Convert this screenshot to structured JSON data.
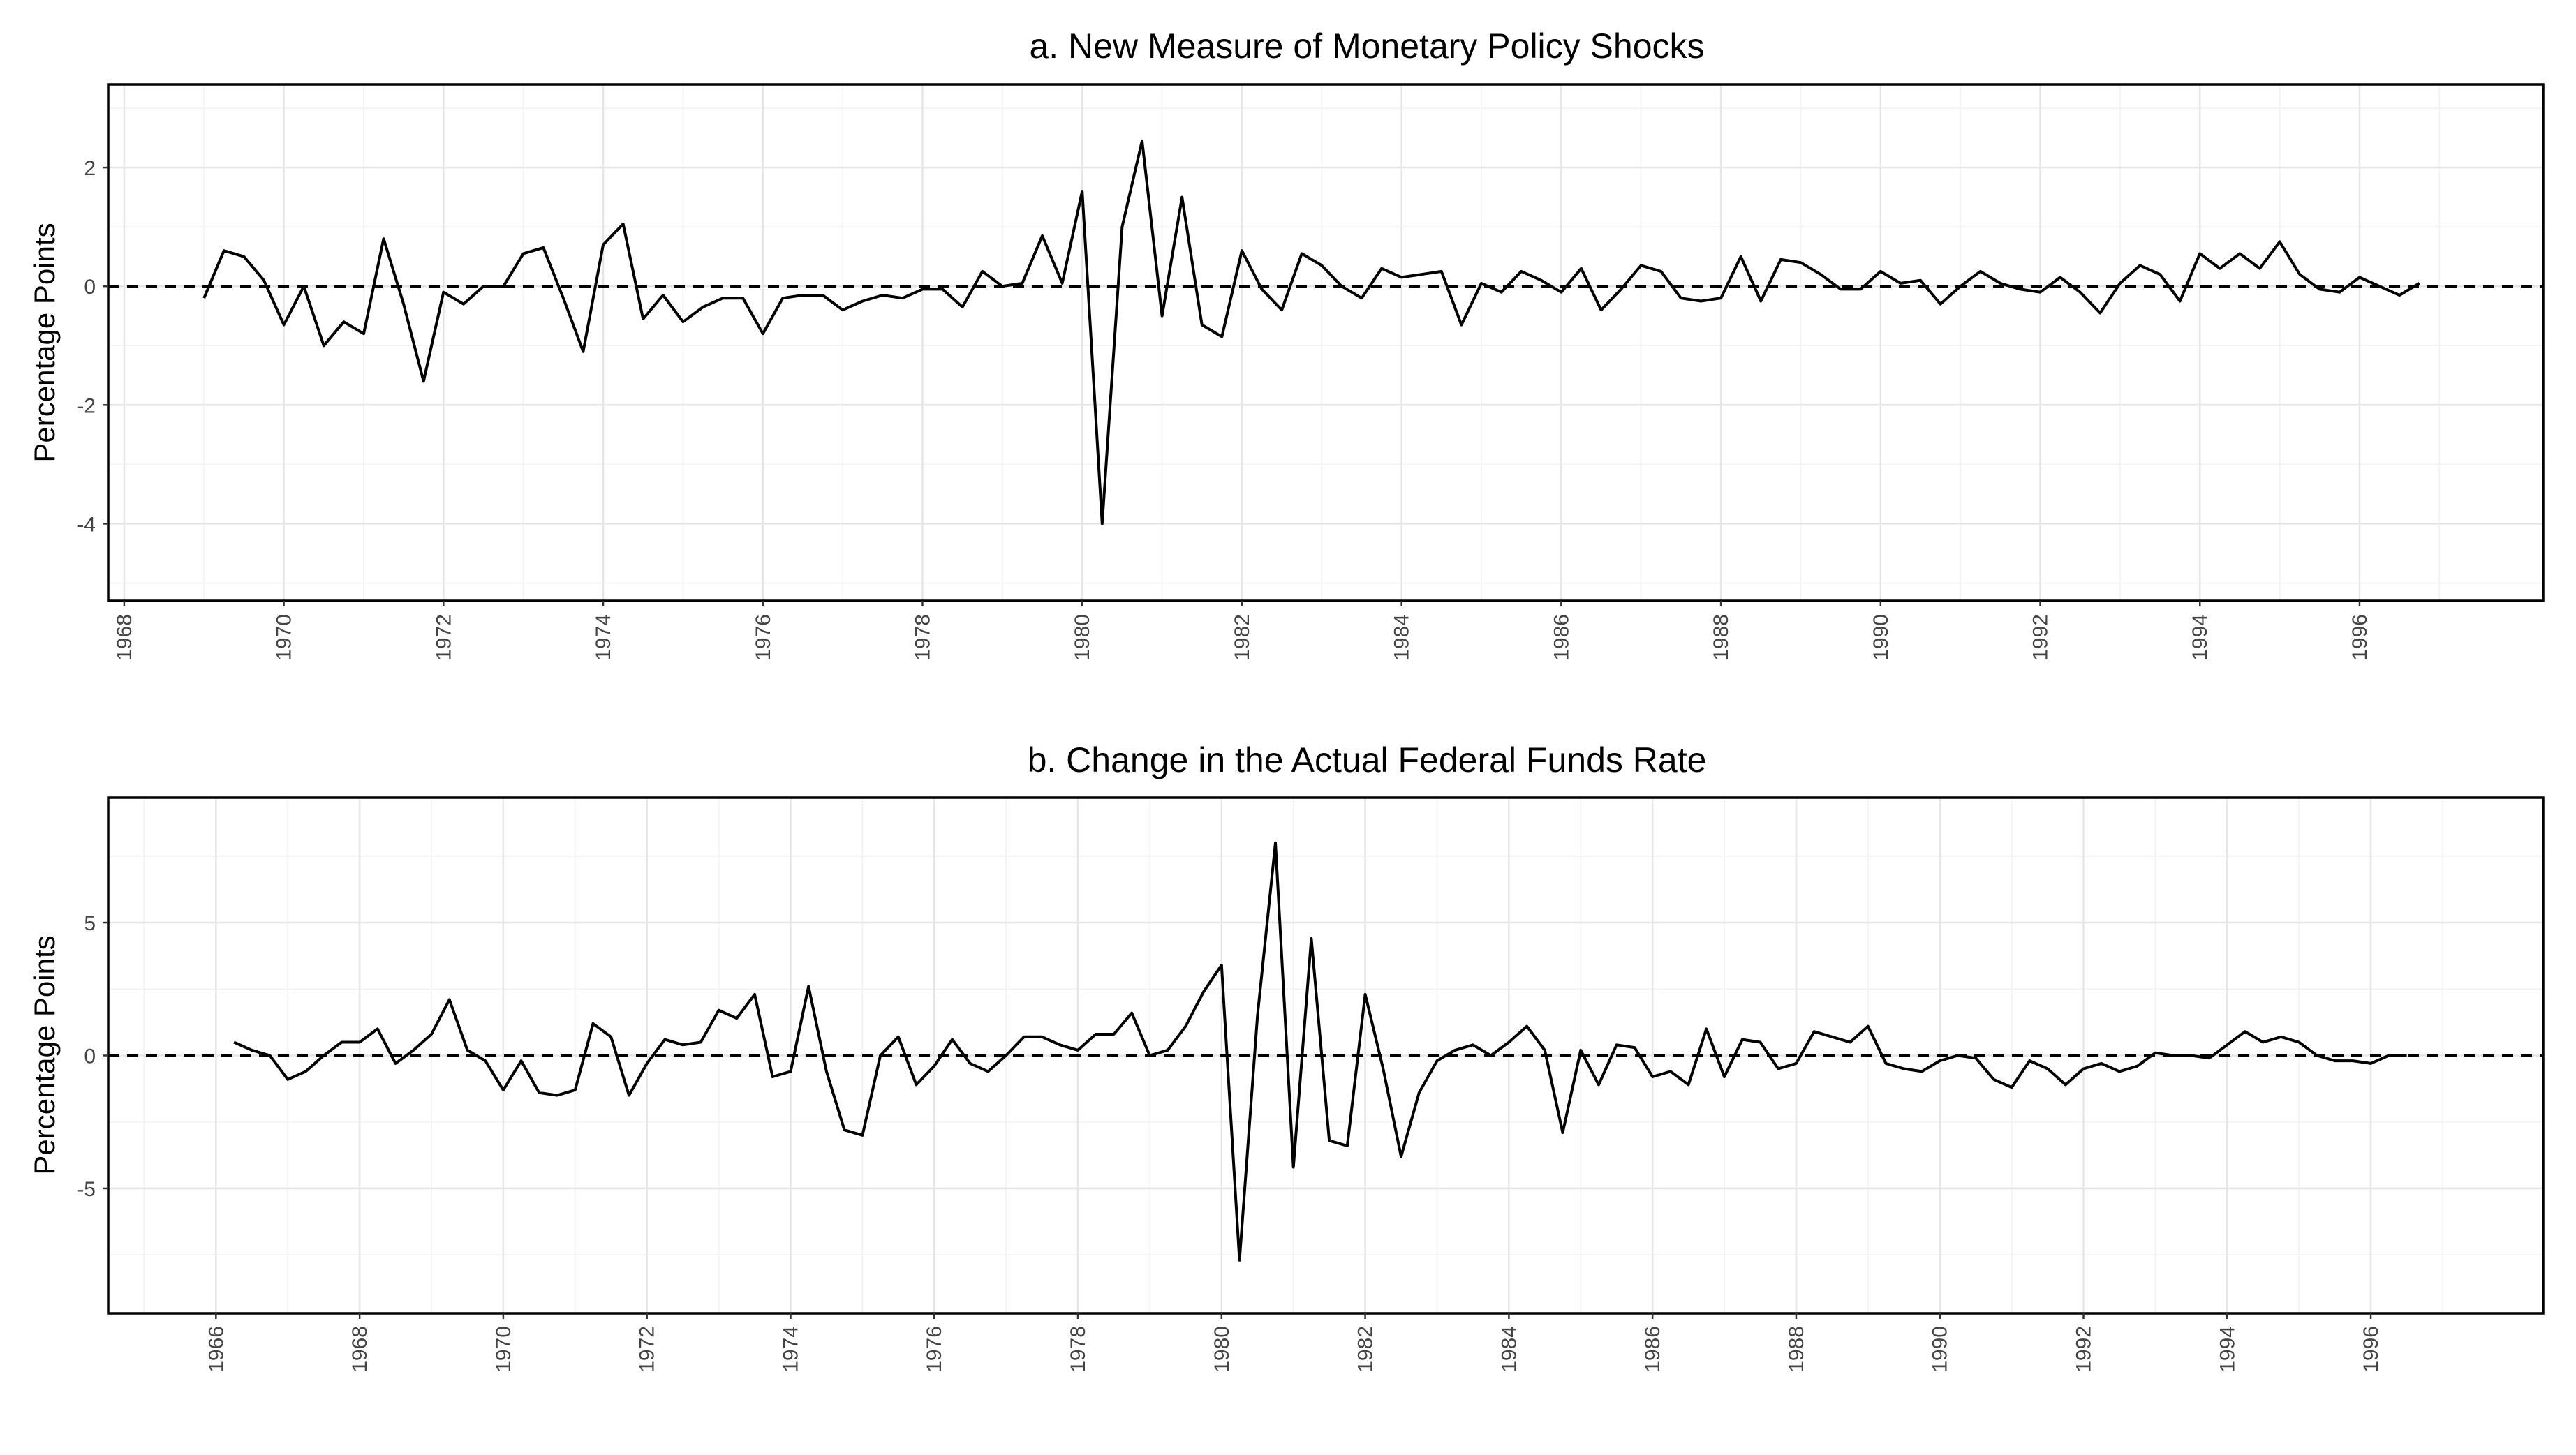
{
  "chart_data": [
    {
      "type": "line",
      "title": "a. New Measure of Monetary Policy Shocks",
      "xlabel": "",
      "ylabel": "Percentage Points",
      "xlim": [
        1967.8,
        1998.3
      ],
      "ylim": [
        -5.3,
        3.4
      ],
      "y_ticks": [
        -4,
        -2,
        0,
        2
      ],
      "x_ticks": [
        1968,
        1970,
        1972,
        1974,
        1976,
        1978,
        1980,
        1982,
        1984,
        1986,
        1988,
        1990,
        1992,
        1994,
        1996
      ],
      "x_tick_labels": [
        "1968",
        "1970",
        "1972",
        "1974",
        "1976",
        "1978",
        "1980",
        "1982",
        "1984",
        "1986",
        "1988",
        "1990",
        "1992",
        "1994",
        "1996"
      ],
      "y_tick_labels": [
        "-4",
        "-2",
        "0",
        "2"
      ],
      "reference_line": {
        "y": 0,
        "style": "dashed"
      },
      "grid": true,
      "series": [
        {
          "x": [
            1969.0,
            1969.25,
            1969.5,
            1969.75,
            1970.0,
            1970.25,
            1970.5,
            1970.75,
            1971.0,
            1971.25,
            1971.5,
            1971.75,
            1972.0,
            1972.25,
            1972.5,
            1972.75,
            1973.0,
            1973.25,
            1973.5,
            1973.75,
            1974.0,
            1974.25,
            1974.5,
            1974.75,
            1975.0,
            1975.25,
            1975.5,
            1975.75,
            1976.0,
            1976.25,
            1976.5,
            1976.75,
            1977.0,
            1977.25,
            1977.5,
            1977.75,
            1978.0,
            1978.25,
            1978.5,
            1978.75,
            1979.0,
            1979.25,
            1979.5,
            1979.75,
            1980.0,
            1980.25,
            1980.5,
            1980.75,
            1981.0,
            1981.25,
            1981.5,
            1981.75,
            1982.0,
            1982.25,
            1982.5,
            1982.75,
            1983.0,
            1983.25,
            1983.5,
            1983.75,
            1984.0,
            1984.25,
            1984.5,
            1984.75,
            1985.0,
            1985.25,
            1985.5,
            1985.75,
            1986.0,
            1986.25,
            1986.5,
            1986.75,
            1987.0,
            1987.25,
            1987.5,
            1987.75,
            1988.0,
            1988.25,
            1988.5,
            1988.75,
            1989.0,
            1989.25,
            1989.5,
            1989.75,
            1990.0,
            1990.25,
            1990.5,
            1990.75,
            1991.0,
            1991.25,
            1991.5,
            1991.75,
            1992.0,
            1992.25,
            1992.5,
            1992.75,
            1993.0,
            1993.25,
            1993.5,
            1993.75,
            1994.0,
            1994.25,
            1994.5,
            1994.75,
            1995.0,
            1995.25,
            1995.5,
            1995.75,
            1996.0,
            1996.25,
            1996.5,
            1996.75
          ],
          "values": [
            -0.2,
            0.6,
            0.5,
            0.1,
            -0.65,
            0.0,
            -1.0,
            -0.6,
            -0.8,
            0.8,
            -0.3,
            -1.6,
            -0.1,
            -0.3,
            0.0,
            0.0,
            0.55,
            0.65,
            -0.2,
            -1.1,
            0.7,
            1.05,
            -0.55,
            -0.15,
            -0.6,
            -0.35,
            -0.2,
            -0.2,
            -0.8,
            -0.2,
            -0.15,
            -0.15,
            -0.4,
            -0.25,
            -0.15,
            -0.2,
            -0.05,
            -0.05,
            -0.35,
            0.25,
            0.0,
            0.05,
            0.85,
            0.05,
            1.6,
            -4.0,
            1.0,
            2.45,
            -0.5,
            1.5,
            -0.65,
            -0.85,
            0.6,
            -0.05,
            -0.4,
            0.55,
            0.35,
            0.0,
            -0.2,
            0.3,
            0.15,
            0.2,
            0.25,
            -0.65,
            0.05,
            -0.1,
            0.25,
            0.1,
            -0.1,
            0.3,
            -0.4,
            -0.05,
            0.35,
            0.25,
            -0.2,
            -0.25,
            -0.2,
            0.5,
            -0.25,
            0.45,
            0.4,
            0.2,
            -0.05,
            -0.05,
            0.25,
            0.05,
            0.1,
            -0.3,
            0.0,
            0.25,
            0.05,
            -0.05,
            -0.1,
            0.15,
            -0.1,
            -0.45,
            0.05,
            0.35,
            0.2,
            -0.25,
            0.55,
            0.3,
            0.55,
            0.3,
            0.75,
            0.2,
            -0.05,
            -0.1,
            0.15,
            0.0,
            -0.15,
            0.05
          ]
        }
      ]
    },
    {
      "type": "line",
      "title": "b. Change in the Actual Federal Funds Rate",
      "xlabel": "",
      "ylabel": "Percentage Points",
      "xlim": [
        1964.5,
        1998.4
      ],
      "ylim": [
        -9.7,
        9.7
      ],
      "y_ticks": [
        -5,
        0,
        5
      ],
      "x_ticks": [
        1966,
        1968,
        1970,
        1972,
        1974,
        1976,
        1978,
        1980,
        1982,
        1984,
        1986,
        1988,
        1990,
        1992,
        1994,
        1996
      ],
      "x_tick_labels": [
        "1966",
        "1968",
        "1970",
        "1972",
        "1974",
        "1976",
        "1978",
        "1980",
        "1982",
        "1984",
        "1986",
        "1988",
        "1990",
        "1992",
        "1994",
        "1996"
      ],
      "y_tick_labels": [
        "-5",
        "0",
        "5"
      ],
      "reference_line": {
        "y": 0,
        "style": "dashed"
      },
      "grid": true,
      "series": [
        {
          "x": [
            1966.25,
            1966.5,
            1966.75,
            1967.0,
            1967.25,
            1967.5,
            1967.75,
            1968.0,
            1968.25,
            1968.5,
            1968.75,
            1969.0,
            1969.25,
            1969.5,
            1969.75,
            1970.0,
            1970.25,
            1970.5,
            1970.75,
            1971.0,
            1971.25,
            1971.5,
            1971.75,
            1972.0,
            1972.25,
            1972.5,
            1972.75,
            1973.0,
            1973.25,
            1973.5,
            1973.75,
            1974.0,
            1974.25,
            1974.5,
            1974.75,
            1975.0,
            1975.25,
            1975.5,
            1975.75,
            1976.0,
            1976.25,
            1976.5,
            1976.75,
            1977.0,
            1977.25,
            1977.5,
            1977.75,
            1978.0,
            1978.25,
            1978.5,
            1978.75,
            1979.0,
            1979.25,
            1979.5,
            1979.75,
            1980.0,
            1980.25,
            1980.5,
            1980.75,
            1981.0,
            1981.25,
            1981.5,
            1981.75,
            1982.0,
            1982.25,
            1982.5,
            1982.75,
            1983.0,
            1983.25,
            1983.5,
            1983.75,
            1984.0,
            1984.25,
            1984.5,
            1984.75,
            1985.0,
            1985.25,
            1985.5,
            1985.75,
            1986.0,
            1986.25,
            1986.5,
            1986.75,
            1987.0,
            1987.25,
            1987.5,
            1987.75,
            1988.0,
            1988.25,
            1988.5,
            1988.75,
            1989.0,
            1989.25,
            1989.5,
            1989.75,
            1990.0,
            1990.25,
            1990.5,
            1990.75,
            1991.0,
            1991.25,
            1991.5,
            1991.75,
            1992.0,
            1992.25,
            1992.5,
            1992.75,
            1993.0,
            1993.25,
            1993.5,
            1993.75,
            1994.0,
            1994.25,
            1994.5,
            1994.75,
            1995.0,
            1995.25,
            1995.5,
            1995.75,
            1996.0,
            1996.25,
            1996.5
          ],
          "values": [
            0.5,
            0.2,
            0.0,
            -0.9,
            -0.6,
            0.0,
            0.5,
            0.5,
            1.0,
            -0.3,
            0.2,
            0.8,
            2.1,
            0.2,
            -0.2,
            -1.3,
            -0.2,
            -1.4,
            -1.5,
            -1.3,
            1.2,
            0.7,
            -1.5,
            -0.3,
            0.6,
            0.4,
            0.5,
            1.7,
            1.4,
            2.3,
            -0.8,
            -0.6,
            2.6,
            -0.6,
            -2.8,
            -3.0,
            0.0,
            0.7,
            -1.1,
            -0.4,
            0.6,
            -0.3,
            -0.6,
            0.0,
            0.7,
            0.7,
            0.4,
            0.2,
            0.8,
            0.8,
            1.6,
            0.0,
            0.2,
            1.1,
            2.4,
            3.4,
            -7.7,
            1.5,
            8.0,
            -4.2,
            4.4,
            -3.2,
            -3.4,
            2.3,
            -0.5,
            -3.8,
            -1.4,
            -0.2,
            0.2,
            0.4,
            0.0,
            0.5,
            1.1,
            0.2,
            -2.9,
            0.2,
            -1.1,
            0.4,
            0.3,
            -0.8,
            -0.6,
            -1.1,
            1.0,
            -0.8,
            0.6,
            0.5,
            -0.5,
            -0.3,
            0.9,
            0.7,
            0.5,
            1.1,
            -0.3,
            -0.5,
            -0.6,
            -0.2,
            0.0,
            -0.1,
            -0.9,
            -1.2,
            -0.2,
            -0.5,
            -1.1,
            -0.5,
            -0.3,
            -0.6,
            -0.4,
            0.1,
            0.0,
            0.0,
            -0.1,
            0.4,
            0.9,
            0.5,
            0.7,
            0.5,
            0.0,
            -0.2,
            -0.2,
            -0.3,
            0.0,
            0.0
          ]
        }
      ]
    }
  ]
}
